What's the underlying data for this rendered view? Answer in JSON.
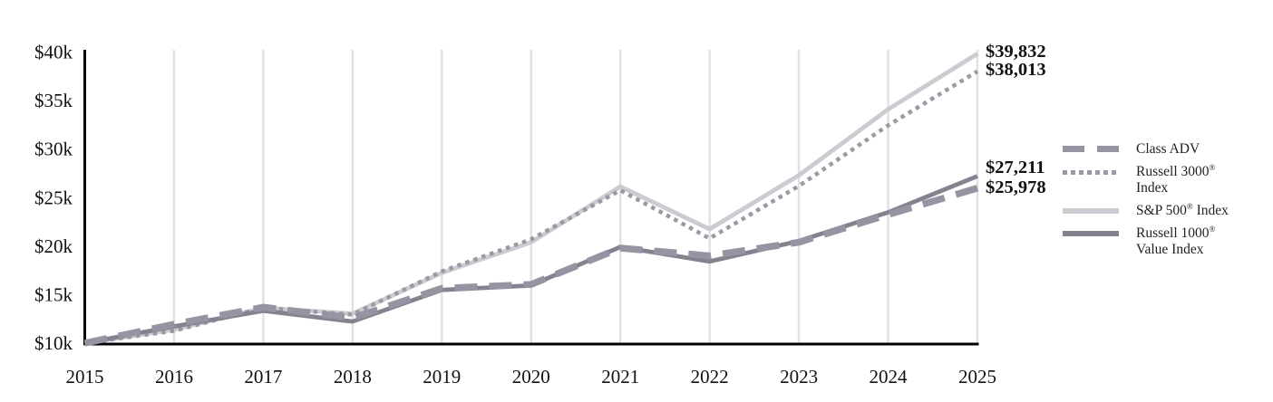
{
  "chart_data": {
    "type": "line",
    "title": "",
    "xlabel": "",
    "ylabel": "",
    "grid": "vertical-only",
    "legend_position": "right",
    "ylim": [
      10000,
      40000
    ],
    "categories": [
      "2015",
      "2016",
      "2017",
      "2018",
      "2019",
      "2020",
      "2021",
      "2022",
      "2023",
      "2024",
      "2025"
    ],
    "y_ticks": [
      {
        "label": "$40k",
        "value": 40000
      },
      {
        "label": "$35k",
        "value": 35000
      },
      {
        "label": "$30k",
        "value": 30000
      },
      {
        "label": "$25k",
        "value": 25000
      },
      {
        "label": "$20k",
        "value": 20000
      },
      {
        "label": "$15k",
        "value": 15000
      },
      {
        "label": "$10k",
        "value": 10000
      }
    ],
    "series": [
      {
        "name": "Class ADV",
        "style": "dashed",
        "color": "#9494a3",
        "values": [
          10000,
          11950,
          13700,
          12600,
          15650,
          16050,
          19800,
          19000,
          20400,
          23250,
          25978
        ],
        "end_label": "$25,978"
      },
      {
        "name": "Russell 3000® Index",
        "style": "dotted",
        "color": "#9a9aa4",
        "values": [
          10000,
          11270,
          13660,
          12940,
          17400,
          20700,
          25760,
          20800,
          26200,
          32450,
          38013
        ],
        "end_label": "$38,013"
      },
      {
        "name": "S&P 500® Index",
        "style": "solid",
        "color": "#cbcbd2",
        "values": [
          10000,
          11400,
          13640,
          13040,
          17250,
          20400,
          26140,
          21750,
          27300,
          34100,
          39832
        ],
        "end_label": "$39,832"
      },
      {
        "name": "Russell 1000® Value Index",
        "style": "solid",
        "color": "#83838f",
        "values": [
          10000,
          11730,
          13340,
          12230,
          15480,
          15950,
          19920,
          18420,
          20530,
          23480,
          27211
        ],
        "end_label": "$27,211"
      }
    ],
    "colors": {
      "axis": "#000000",
      "gridline": "#e2e2e5",
      "text": "#111111"
    }
  },
  "legend": {
    "items": [
      {
        "pre": "Class ADV",
        "sup": "",
        "post": "",
        "line2": ""
      },
      {
        "pre": "Russell 3000",
        "sup": "®",
        "post": "",
        "line2": "Index"
      },
      {
        "pre": "S&P 500",
        "sup": "®",
        "post": " Index",
        "line2": ""
      },
      {
        "pre": "Russell 1000",
        "sup": "®",
        "post": "",
        "line2": "Value Index"
      }
    ]
  }
}
